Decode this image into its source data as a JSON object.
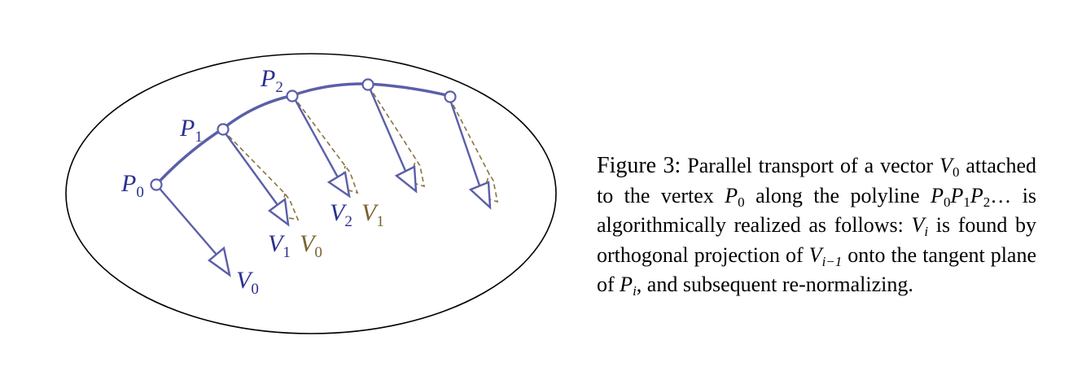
{
  "colors": {
    "curve": "#5b5fa8",
    "transported": "#8a7340",
    "outline": "#000000",
    "label_blue": "#2a2f8f",
    "label_olive": "#7a6230"
  },
  "diagram": {
    "points": [
      {
        "base": "P",
        "sub": "0"
      },
      {
        "base": "P",
        "sub": "1"
      },
      {
        "base": "P",
        "sub": "2"
      }
    ],
    "vector_labels": {
      "v0_start": {
        "base": "V",
        "sub": "0"
      },
      "v1": {
        "base": "V",
        "sub": "1"
      },
      "v0_moved": {
        "base": "V",
        "sub": "0"
      },
      "v2": {
        "base": "V",
        "sub": "2"
      },
      "v1_moved": {
        "base": "V",
        "sub": "1"
      }
    }
  },
  "caption": {
    "figure_label": "Figure 3:",
    "t1": "Parallel transport of a vector",
    "t2": "attached to the vertex",
    "t3": "along the polyline",
    "t4": "is algorithmically realized as follows:",
    "t5": "is found by orthogonal projection of",
    "t6": "onto the tangent plane of",
    "t7": ", and subsequent re-normalizing.",
    "sym_V": "V",
    "sym_P": "P",
    "sub_0": "0",
    "sub_1": "1",
    "sub_2": "2",
    "sub_i": "i",
    "sub_im1": "i−1",
    "dots": "…"
  }
}
